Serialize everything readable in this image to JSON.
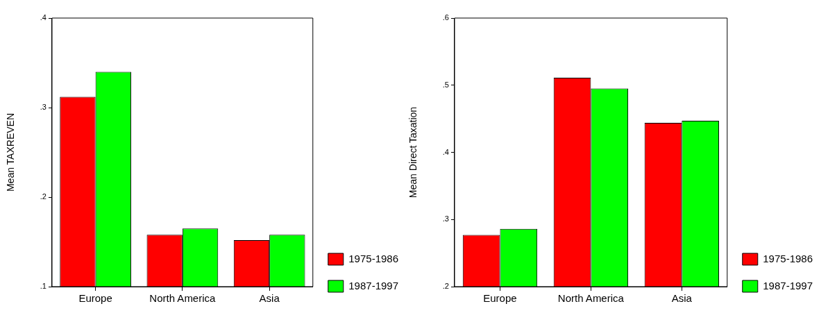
{
  "chart_data": [
    {
      "type": "bar",
      "ylabel": "Mean TAXREVEN",
      "categories": [
        "Europe",
        "North America",
        "Asia"
      ],
      "series": [
        {
          "name": "1975-1986",
          "color": "#ff0000",
          "values": [
            0.312,
            0.158,
            0.152
          ]
        },
        {
          "name": "1987-1997",
          "color": "#00ff00",
          "values": [
            0.34,
            0.165,
            0.158
          ]
        }
      ],
      "ylim": [
        0.1,
        0.4
      ],
      "yticks": [
        {
          "value": 0.1,
          "label": ".1"
        },
        {
          "value": 0.2,
          "label": ".2"
        },
        {
          "value": 0.3,
          "label": ".3"
        },
        {
          "value": 0.4,
          "label": ".4"
        }
      ],
      "grid": false,
      "legend": "right"
    },
    {
      "type": "bar",
      "ylabel": "Mean Direct Taxation",
      "categories": [
        "Europe",
        "North America",
        "Asia"
      ],
      "series": [
        {
          "name": "1975-1986",
          "color": "#ff0000",
          "values": [
            0.277,
            0.511,
            0.444
          ]
        },
        {
          "name": "1987-1997",
          "color": "#00ff00",
          "values": [
            0.286,
            0.495,
            0.447
          ]
        }
      ],
      "ylim": [
        0.2,
        0.6
      ],
      "yticks": [
        {
          "value": 0.2,
          "label": ".2"
        },
        {
          "value": 0.3,
          "label": ".3"
        },
        {
          "value": 0.4,
          "label": ".4"
        },
        {
          "value": 0.5,
          "label": ".5"
        },
        {
          "value": 0.6,
          "label": ".6"
        }
      ],
      "grid": false,
      "legend": "right"
    }
  ]
}
